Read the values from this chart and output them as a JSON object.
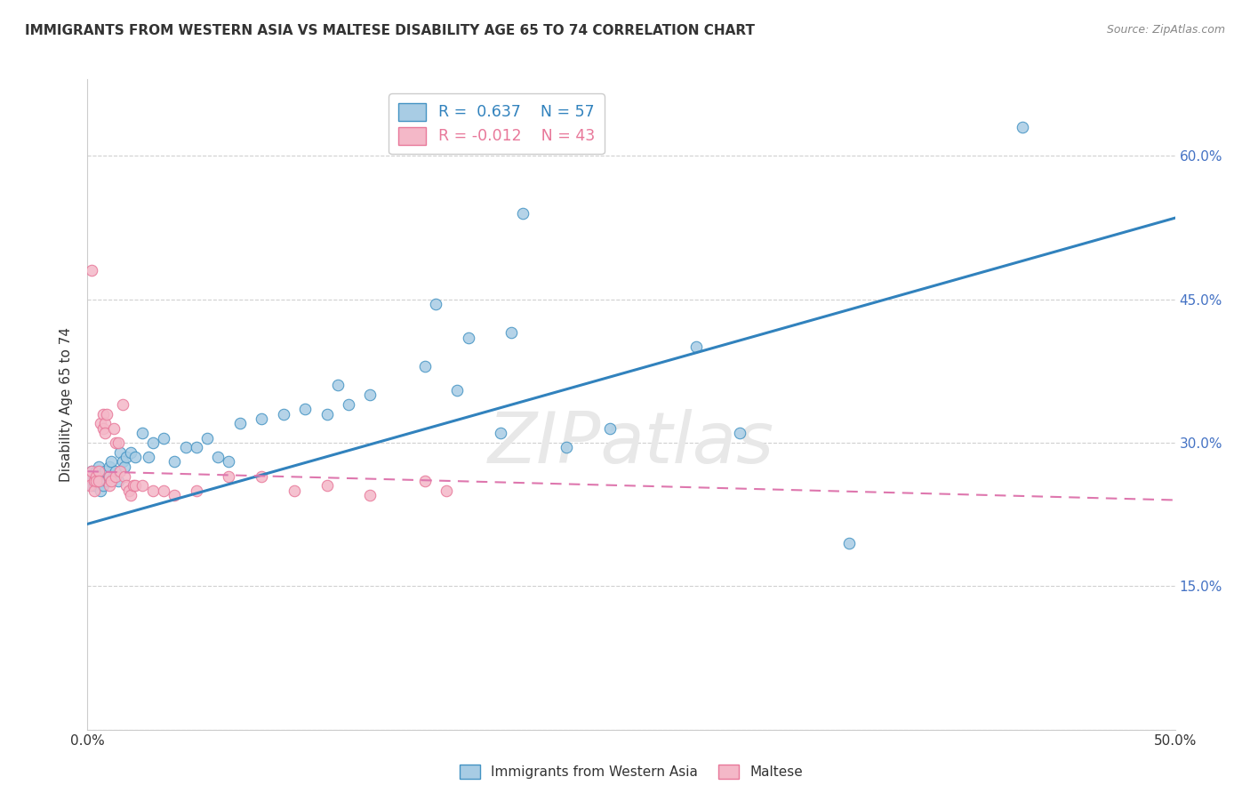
{
  "title": "IMMIGRANTS FROM WESTERN ASIA VS MALTESE DISABILITY AGE 65 TO 74 CORRELATION CHART",
  "source": "Source: ZipAtlas.com",
  "ylabel": "Disability Age 65 to 74",
  "xlim": [
    0.0,
    0.5
  ],
  "ylim": [
    0.0,
    0.68
  ],
  "x_ticks": [
    0.0,
    0.05,
    0.1,
    0.15,
    0.2,
    0.25,
    0.3,
    0.35,
    0.4,
    0.45,
    0.5
  ],
  "y_ticks": [
    0.0,
    0.15,
    0.3,
    0.45,
    0.6
  ],
  "y_tick_labels_right": [
    "",
    "15.0%",
    "30.0%",
    "45.0%",
    "60.0%"
  ],
  "blue_R": "0.637",
  "blue_N": "57",
  "pink_R": "-0.012",
  "pink_N": "43",
  "blue_color": "#a8cce4",
  "pink_color": "#f4b8c8",
  "blue_edge_color": "#4393c3",
  "pink_edge_color": "#e8789a",
  "blue_line_color": "#3182bd",
  "pink_line_color": "#de77ae",
  "watermark_text": "ZIPatlas",
  "blue_scatter_x": [
    0.001,
    0.002,
    0.002,
    0.003,
    0.003,
    0.004,
    0.005,
    0.005,
    0.006,
    0.006,
    0.007,
    0.007,
    0.008,
    0.009,
    0.01,
    0.01,
    0.011,
    0.012,
    0.013,
    0.014,
    0.015,
    0.016,
    0.017,
    0.018,
    0.02,
    0.022,
    0.025,
    0.028,
    0.03,
    0.035,
    0.04,
    0.045,
    0.05,
    0.055,
    0.06,
    0.065,
    0.07,
    0.08,
    0.09,
    0.1,
    0.11,
    0.115,
    0.12,
    0.13,
    0.155,
    0.16,
    0.17,
    0.175,
    0.19,
    0.195,
    0.2,
    0.22,
    0.24,
    0.28,
    0.3,
    0.35,
    0.43
  ],
  "blue_scatter_y": [
    0.265,
    0.27,
    0.255,
    0.265,
    0.255,
    0.27,
    0.275,
    0.265,
    0.26,
    0.25,
    0.26,
    0.255,
    0.27,
    0.26,
    0.265,
    0.275,
    0.28,
    0.265,
    0.27,
    0.26,
    0.29,
    0.28,
    0.275,
    0.285,
    0.29,
    0.285,
    0.31,
    0.285,
    0.3,
    0.305,
    0.28,
    0.295,
    0.295,
    0.305,
    0.285,
    0.28,
    0.32,
    0.325,
    0.33,
    0.335,
    0.33,
    0.36,
    0.34,
    0.35,
    0.38,
    0.445,
    0.355,
    0.41,
    0.31,
    0.415,
    0.54,
    0.295,
    0.315,
    0.4,
    0.31,
    0.195,
    0.63
  ],
  "pink_scatter_x": [
    0.001,
    0.001,
    0.002,
    0.002,
    0.003,
    0.003,
    0.004,
    0.004,
    0.005,
    0.005,
    0.006,
    0.007,
    0.007,
    0.008,
    0.008,
    0.009,
    0.01,
    0.01,
    0.011,
    0.012,
    0.013,
    0.013,
    0.014,
    0.015,
    0.016,
    0.017,
    0.018,
    0.019,
    0.02,
    0.021,
    0.022,
    0.025,
    0.03,
    0.035,
    0.04,
    0.05,
    0.065,
    0.08,
    0.095,
    0.11,
    0.13,
    0.155,
    0.165
  ],
  "pink_scatter_y": [
    0.265,
    0.255,
    0.48,
    0.27,
    0.26,
    0.25,
    0.265,
    0.26,
    0.27,
    0.26,
    0.32,
    0.33,
    0.315,
    0.32,
    0.31,
    0.33,
    0.265,
    0.255,
    0.26,
    0.315,
    0.3,
    0.265,
    0.3,
    0.27,
    0.34,
    0.265,
    0.255,
    0.25,
    0.245,
    0.255,
    0.255,
    0.255,
    0.25,
    0.25,
    0.245,
    0.25,
    0.265,
    0.265,
    0.25,
    0.255,
    0.245,
    0.26,
    0.25
  ],
  "blue_trendline_x": [
    0.0,
    0.5
  ],
  "blue_trendline_y": [
    0.215,
    0.535
  ],
  "pink_trendline_x": [
    0.0,
    0.5
  ],
  "pink_trendline_y": [
    0.27,
    0.24
  ],
  "grid_color": "#d0d0d0",
  "background_color": "#ffffff",
  "title_color": "#333333",
  "right_axis_color": "#4472c4",
  "marker_size": 9
}
